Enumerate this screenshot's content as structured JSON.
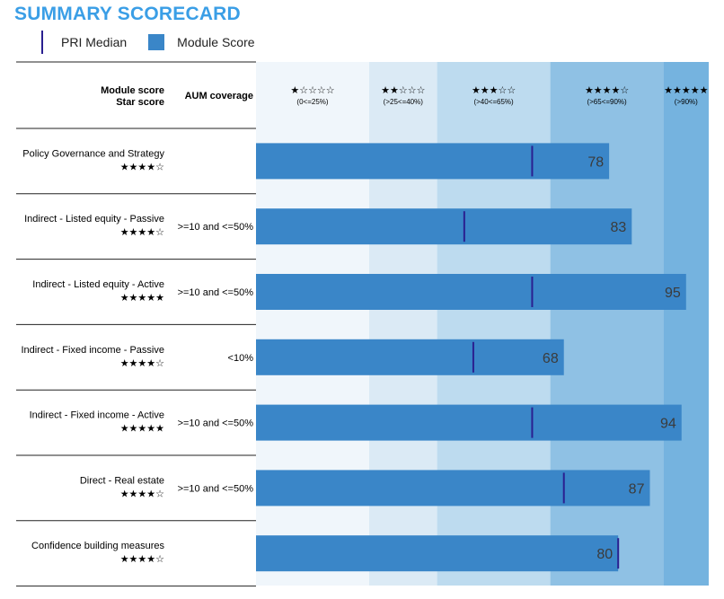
{
  "title": "SUMMARY SCORECARD",
  "legend": {
    "median": "PRI Median",
    "score": "Module Score"
  },
  "header": {
    "module_score": "Module score",
    "star_score": "Star score",
    "aum": "AUM coverage"
  },
  "bands": [
    {
      "stars": "★☆☆☆☆",
      "range": "(0<=25%)",
      "from": 0,
      "to": 25,
      "color": "#f0f6fb"
    },
    {
      "stars": "★★☆☆☆",
      "range": "(>25<=40%)",
      "from": 25,
      "to": 40,
      "color": "#dbeaf5"
    },
    {
      "stars": "★★★☆☆",
      "range": "(>40<=65%)",
      "from": 40,
      "to": 65,
      "color": "#bddbef"
    },
    {
      "stars": "★★★★☆",
      "range": "(>65<=90%)",
      "from": 65,
      "to": 90,
      "color": "#8fc1e4"
    },
    {
      "stars": "★★★★★",
      "range": "(>90%)",
      "from": 90,
      "to": 100,
      "color": "#75b3df"
    }
  ],
  "colors": {
    "bar": "#3a86c8",
    "median": "#2a2090",
    "label": "#3b3b3b"
  },
  "chart_data": {
    "type": "bar",
    "orientation": "horizontal",
    "xlim": [
      0,
      100
    ],
    "categories": [
      "Policy Governance and Strategy",
      "Indirect - Listed equity - Passive",
      "Indirect - Listed equity - Active",
      "Indirect - Fixed income - Passive",
      "Indirect - Fixed income - Active",
      "Direct - Real estate",
      "Confidence building measures"
    ],
    "star_scores": [
      "★★★★☆",
      "★★★★☆",
      "★★★★★",
      "★★★★☆",
      "★★★★★",
      "★★★★☆",
      "★★★★☆"
    ],
    "aum_coverage": [
      "",
      ">=10 and <=50%",
      ">=10 and <=50%",
      "<10%",
      ">=10 and <=50%",
      ">=10 and <=50%",
      ""
    ],
    "series": [
      {
        "name": "Module Score",
        "values": [
          78,
          83,
          95,
          68,
          94,
          87,
          80
        ]
      },
      {
        "name": "PRI Median",
        "values": [
          61,
          46,
          61,
          48,
          61,
          68,
          80
        ]
      }
    ]
  }
}
